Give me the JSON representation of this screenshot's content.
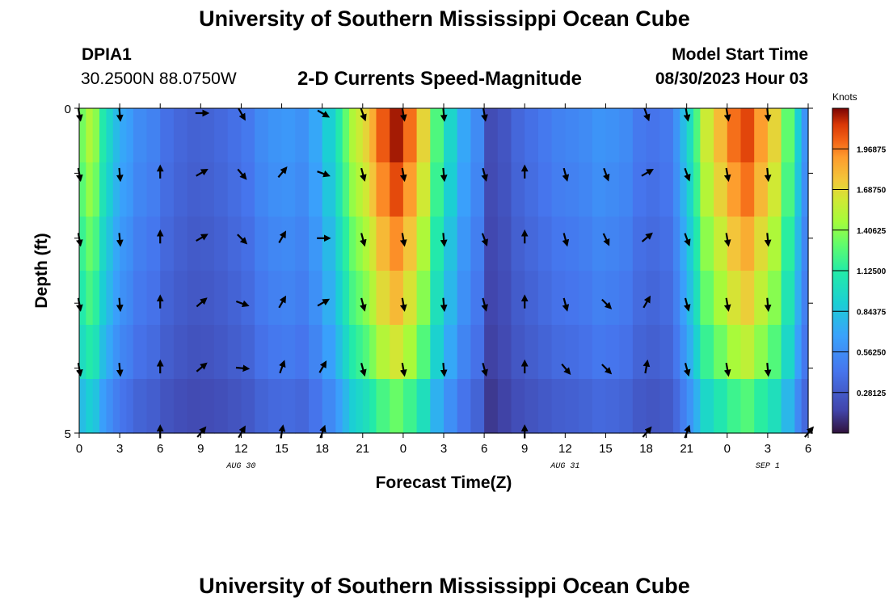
{
  "header": {
    "title": "University of Southern Mississippi Ocean Cube",
    "station": "DPIA1",
    "coords": "30.2500N  88.0750W",
    "plot_title": "2-D Currents Speed-Magnitude",
    "model_start_label": "Model Start Time",
    "model_start_value": "08/30/2023 Hour 03"
  },
  "footer": {
    "title": "University of Southern Mississippi Ocean Cube"
  },
  "chart_data": {
    "type": "heatmap",
    "title": "2-D Currents Speed-Magnitude",
    "xlabel": "Forecast Time(Z)",
    "ylabel": "Depth (ft)",
    "x_tick_labels": [
      "0",
      "3",
      "6",
      "9",
      "12",
      "15",
      "18",
      "21",
      "0",
      "3",
      "6",
      "9",
      "12",
      "15",
      "18",
      "21",
      "0",
      "3",
      "6"
    ],
    "y_tick_labels": [
      "0",
      "5"
    ],
    "ylim": [
      0,
      5
    ],
    "date_labels": [
      {
        "text": "AUG 30",
        "at_hour": 12
      },
      {
        "text": "AUG 31",
        "at_hour": 36
      },
      {
        "text": "SEP 1",
        "at_hour": 51
      }
    ],
    "hours_range": [
      0,
      54
    ],
    "depth_levels": 6,
    "colorbar": {
      "title": "Knots",
      "range": [
        0,
        2.25
      ],
      "ticks": [
        "0.28125",
        "0.56250",
        "0.84375",
        "1.12500",
        "1.40625",
        "1.68750",
        "1.96875"
      ]
    },
    "speed_profile": {
      "hours": [
        0,
        0.5,
        1,
        1.5,
        2,
        2.5,
        3,
        3.5,
        4,
        5,
        6,
        7,
        8,
        9,
        10,
        11,
        12,
        13,
        14,
        15,
        16,
        17,
        18,
        19,
        19.5,
        20,
        20.5,
        21,
        21.5,
        22,
        23,
        24,
        25,
        26,
        27,
        28,
        29,
        30,
        31,
        32,
        33,
        34,
        35,
        36,
        37,
        38,
        39,
        40,
        41,
        42,
        43,
        44,
        44.5,
        45,
        45.5,
        46,
        47,
        48,
        49,
        50,
        51,
        52,
        53,
        53.5,
        54
      ],
      "surface": [
        1.35,
        1.5,
        1.4,
        1.1,
        0.95,
        0.8,
        0.7,
        0.65,
        0.55,
        0.5,
        0.4,
        0.35,
        0.32,
        0.33,
        0.36,
        0.4,
        0.45,
        0.55,
        0.6,
        0.62,
        0.58,
        0.7,
        0.9,
        1.1,
        1.3,
        1.5,
        1.6,
        1.7,
        1.85,
        2.05,
        2.2,
        2.0,
        1.7,
        1.25,
        0.95,
        0.7,
        0.55,
        0.2,
        0.25,
        0.35,
        0.4,
        0.45,
        0.5,
        0.52,
        0.55,
        0.6,
        0.58,
        0.55,
        0.45,
        0.42,
        0.45,
        0.6,
        0.8,
        1.0,
        1.25,
        1.6,
        1.8,
        2.0,
        2.1,
        1.9,
        1.7,
        1.3,
        0.9,
        0.6,
        0.2
      ],
      "depth_scale": [
        1.0,
        0.95,
        0.88,
        0.82,
        0.74,
        0.6
      ]
    },
    "arrows": [
      {
        "hour": 0,
        "row": 0,
        "angle": 170
      },
      {
        "hour": 3,
        "row": 0,
        "angle": 175
      },
      {
        "hour": 9,
        "row": 0,
        "angle": 90
      },
      {
        "hour": 12,
        "row": 0,
        "angle": 150
      },
      {
        "hour": 18,
        "row": 0,
        "angle": 120
      },
      {
        "hour": 21,
        "row": 0,
        "angle": 160
      },
      {
        "hour": 24,
        "row": 0,
        "angle": 170
      },
      {
        "hour": 27,
        "row": 0,
        "angle": 175
      },
      {
        "hour": 30,
        "row": 0,
        "angle": 170
      },
      {
        "hour": 42,
        "row": 0,
        "angle": 160
      },
      {
        "hour": 45,
        "row": 0,
        "angle": 170
      },
      {
        "hour": 48,
        "row": 0,
        "angle": 170
      },
      {
        "hour": 51,
        "row": 0,
        "angle": 175
      },
      {
        "hour": 0,
        "row": 1,
        "angle": 170
      },
      {
        "hour": 3,
        "row": 1,
        "angle": 175
      },
      {
        "hour": 6,
        "row": 1,
        "angle": 0
      },
      {
        "hour": 9,
        "row": 1,
        "angle": 60
      },
      {
        "hour": 12,
        "row": 1,
        "angle": 140
      },
      {
        "hour": 15,
        "row": 1,
        "angle": 40
      },
      {
        "hour": 18,
        "row": 1,
        "angle": 110
      },
      {
        "hour": 21,
        "row": 1,
        "angle": 165
      },
      {
        "hour": 24,
        "row": 1,
        "angle": 170
      },
      {
        "hour": 27,
        "row": 1,
        "angle": 175
      },
      {
        "hour": 30,
        "row": 1,
        "angle": 165
      },
      {
        "hour": 33,
        "row": 1,
        "angle": 0
      },
      {
        "hour": 36,
        "row": 1,
        "angle": 165
      },
      {
        "hour": 39,
        "row": 1,
        "angle": 160
      },
      {
        "hour": 42,
        "row": 1,
        "angle": 60
      },
      {
        "hour": 45,
        "row": 1,
        "angle": 160
      },
      {
        "hour": 48,
        "row": 1,
        "angle": 170
      },
      {
        "hour": 51,
        "row": 1,
        "angle": 175
      },
      {
        "hour": 0,
        "row": 2,
        "angle": 170
      },
      {
        "hour": 3,
        "row": 2,
        "angle": 175
      },
      {
        "hour": 6,
        "row": 2,
        "angle": 0
      },
      {
        "hour": 9,
        "row": 2,
        "angle": 60
      },
      {
        "hour": 12,
        "row": 2,
        "angle": 135
      },
      {
        "hour": 15,
        "row": 2,
        "angle": 30
      },
      {
        "hour": 18,
        "row": 2,
        "angle": 90
      },
      {
        "hour": 21,
        "row": 2,
        "angle": 165
      },
      {
        "hour": 24,
        "row": 2,
        "angle": 170
      },
      {
        "hour": 27,
        "row": 2,
        "angle": 175
      },
      {
        "hour": 30,
        "row": 2,
        "angle": 160
      },
      {
        "hour": 33,
        "row": 2,
        "angle": 0
      },
      {
        "hour": 36,
        "row": 2,
        "angle": 165
      },
      {
        "hour": 39,
        "row": 2,
        "angle": 155
      },
      {
        "hour": 42,
        "row": 2,
        "angle": 50
      },
      {
        "hour": 45,
        "row": 2,
        "angle": 160
      },
      {
        "hour": 48,
        "row": 2,
        "angle": 170
      },
      {
        "hour": 51,
        "row": 2,
        "angle": 175
      },
      {
        "hour": 0,
        "row": 3,
        "angle": 170
      },
      {
        "hour": 3,
        "row": 3,
        "angle": 175
      },
      {
        "hour": 6,
        "row": 3,
        "angle": 0
      },
      {
        "hour": 9,
        "row": 3,
        "angle": 50
      },
      {
        "hour": 12,
        "row": 3,
        "angle": 110
      },
      {
        "hour": 15,
        "row": 3,
        "angle": 30
      },
      {
        "hour": 18,
        "row": 3,
        "angle": 60
      },
      {
        "hour": 21,
        "row": 3,
        "angle": 165
      },
      {
        "hour": 24,
        "row": 3,
        "angle": 170
      },
      {
        "hour": 27,
        "row": 3,
        "angle": 175
      },
      {
        "hour": 30,
        "row": 3,
        "angle": 165
      },
      {
        "hour": 33,
        "row": 3,
        "angle": 0
      },
      {
        "hour": 36,
        "row": 3,
        "angle": 165
      },
      {
        "hour": 39,
        "row": 3,
        "angle": 135
      },
      {
        "hour": 42,
        "row": 3,
        "angle": 30
      },
      {
        "hour": 45,
        "row": 3,
        "angle": 165
      },
      {
        "hour": 48,
        "row": 3,
        "angle": 170
      },
      {
        "hour": 51,
        "row": 3,
        "angle": 175
      },
      {
        "hour": 0,
        "row": 4,
        "angle": 170
      },
      {
        "hour": 3,
        "row": 4,
        "angle": 175
      },
      {
        "hour": 6,
        "row": 4,
        "angle": 0
      },
      {
        "hour": 9,
        "row": 4,
        "angle": 50
      },
      {
        "hour": 12,
        "row": 4,
        "angle": 95
      },
      {
        "hour": 15,
        "row": 4,
        "angle": 20
      },
      {
        "hour": 18,
        "row": 4,
        "angle": 30
      },
      {
        "hour": 21,
        "row": 4,
        "angle": 165
      },
      {
        "hour": 24,
        "row": 4,
        "angle": 170
      },
      {
        "hour": 27,
        "row": 4,
        "angle": 175
      },
      {
        "hour": 30,
        "row": 4,
        "angle": 165
      },
      {
        "hour": 33,
        "row": 4,
        "angle": 0
      },
      {
        "hour": 36,
        "row": 4,
        "angle": 140
      },
      {
        "hour": 39,
        "row": 4,
        "angle": 135
      },
      {
        "hour": 42,
        "row": 4,
        "angle": 10
      },
      {
        "hour": 45,
        "row": 4,
        "angle": 165
      },
      {
        "hour": 48,
        "row": 4,
        "angle": 170
      },
      {
        "hour": 51,
        "row": 4,
        "angle": 175
      },
      {
        "hour": 6,
        "row": 5,
        "angle": 0
      },
      {
        "hour": 9,
        "row": 5,
        "angle": 40
      },
      {
        "hour": 12,
        "row": 5,
        "angle": 30
      },
      {
        "hour": 15,
        "row": 5,
        "angle": 10
      },
      {
        "hour": 18,
        "row": 5,
        "angle": 20
      },
      {
        "hour": 33,
        "row": 5,
        "angle": 0
      },
      {
        "hour": 42,
        "row": 5,
        "angle": 40
      },
      {
        "hour": 45,
        "row": 5,
        "angle": 20
      },
      {
        "hour": 54,
        "row": 5,
        "angle": 40
      }
    ]
  }
}
